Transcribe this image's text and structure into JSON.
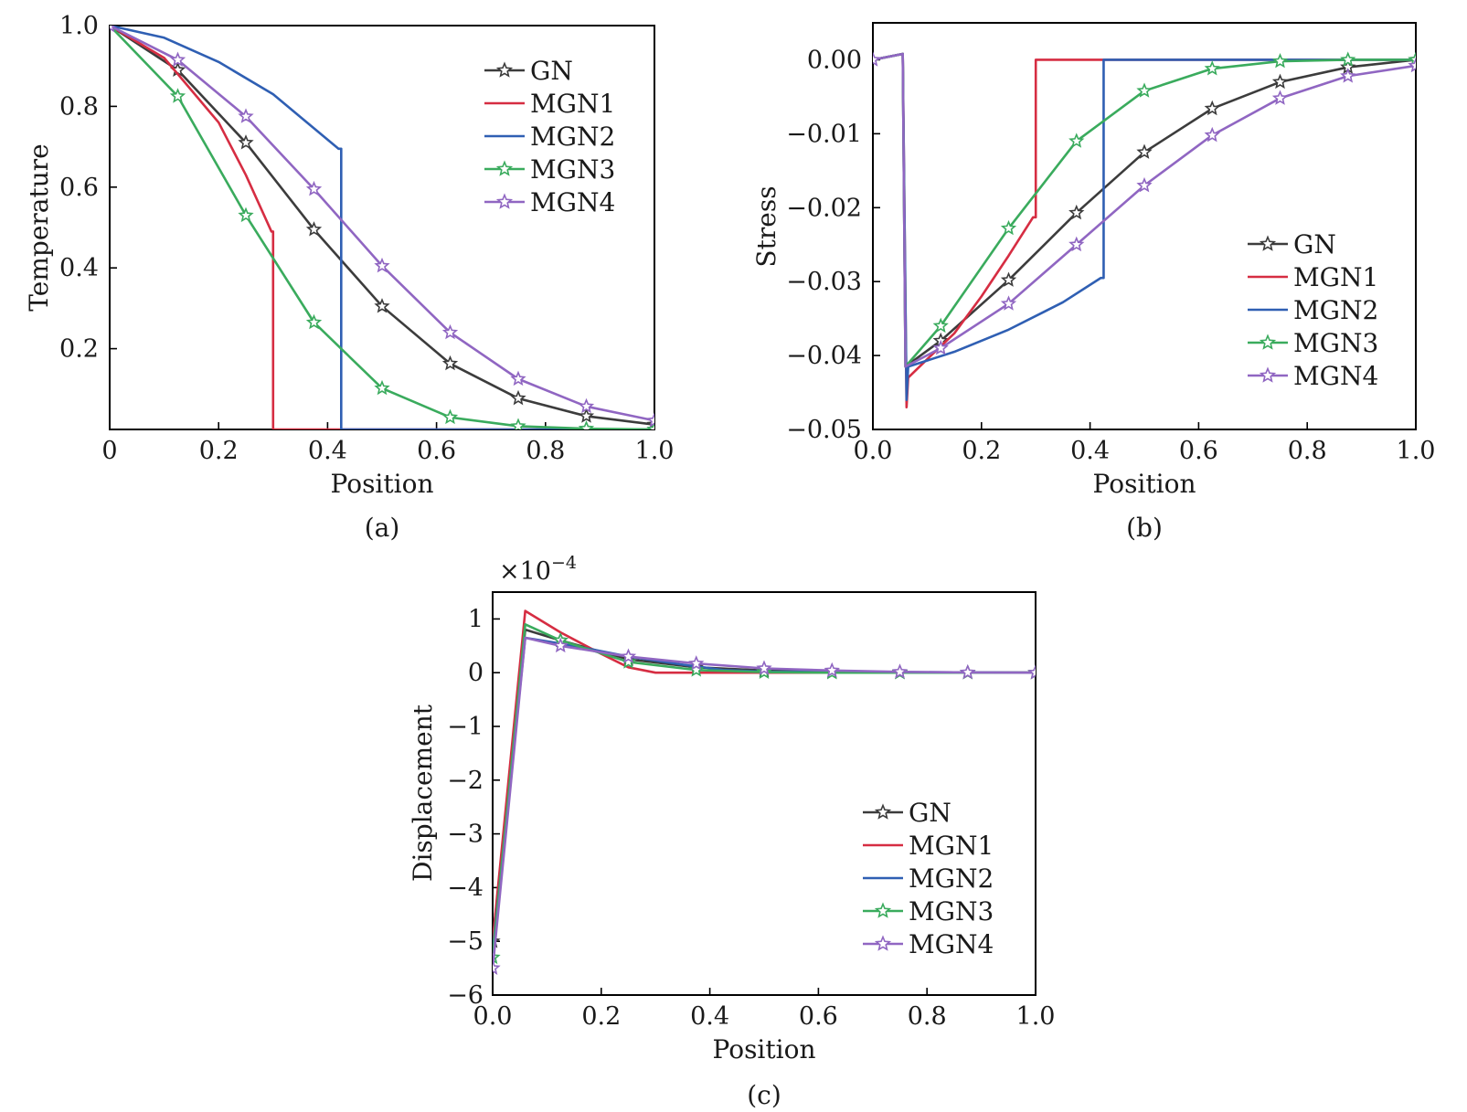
{
  "colors": {
    "GN": "#3c3c3c",
    "MGN1": "#d62d42",
    "MGN2": "#2f5fb3",
    "MGN3": "#3aab5d",
    "MGN4": "#9066c2"
  },
  "chart_data": [
    {
      "id": "a",
      "type": "line",
      "caption": "(a)",
      "xlabel": "Position",
      "ylabel": "Temperature",
      "xlim": [
        0,
        1
      ],
      "ylim": [
        0,
        1
      ],
      "xticks": [
        0,
        0.2,
        0.4,
        0.6,
        0.8,
        1.0
      ],
      "xtick_labels": [
        "0",
        "0.2",
        "0.4",
        "0.6",
        "0.8",
        "1.0"
      ],
      "yticks": [
        0.2,
        0.4,
        0.6,
        0.8,
        1.0
      ],
      "ytick_labels": [
        "0.2",
        "0.4",
        "0.6",
        "0.8",
        "1.0"
      ],
      "legend": {
        "position": "top-right",
        "entries": [
          "GN",
          "MGN1",
          "MGN2",
          "MGN3",
          "MGN4"
        ]
      },
      "series": [
        {
          "name": "GN",
          "marker": "star",
          "x": [
            0,
            0.125,
            0.25,
            0.375,
            0.5,
            0.625,
            0.75,
            0.875,
            1.0
          ],
          "y": [
            1.0,
            0.89,
            0.71,
            0.495,
            0.305,
            0.163,
            0.077,
            0.033,
            0.012
          ],
          "markers_x": [
            0.125,
            0.25,
            0.375,
            0.5,
            0.625,
            0.75,
            0.875,
            1.0
          ]
        },
        {
          "name": "MGN1",
          "marker": "none",
          "x": [
            0,
            0.1,
            0.2,
            0.25,
            0.297,
            0.3,
            0.3,
            1.0
          ],
          "y": [
            1.0,
            0.92,
            0.76,
            0.63,
            0.49,
            0.49,
            0,
            0
          ]
        },
        {
          "name": "MGN2",
          "marker": "none",
          "x": [
            0,
            0.1,
            0.2,
            0.3,
            0.42,
            0.425,
            0.425,
            1.0
          ],
          "y": [
            1.0,
            0.97,
            0.91,
            0.83,
            0.695,
            0.695,
            0,
            0
          ]
        },
        {
          "name": "MGN3",
          "marker": "star",
          "x": [
            0,
            0.125,
            0.25,
            0.375,
            0.5,
            0.625,
            0.75,
            0.875,
            1.0
          ],
          "y": [
            1.0,
            0.825,
            0.53,
            0.265,
            0.102,
            0.03,
            0.008,
            0.002,
            0.0
          ],
          "markers_x": [
            0.125,
            0.25,
            0.375,
            0.5,
            0.625,
            0.75,
            0.875,
            1.0
          ]
        },
        {
          "name": "MGN4",
          "marker": "star",
          "x": [
            0,
            0.125,
            0.25,
            0.375,
            0.5,
            0.625,
            0.75,
            0.875,
            1.0
          ],
          "y": [
            1.0,
            0.915,
            0.775,
            0.595,
            0.405,
            0.24,
            0.125,
            0.057,
            0.022
          ],
          "markers_x": [
            0,
            0.125,
            0.25,
            0.375,
            0.5,
            0.625,
            0.75,
            0.875,
            1.0
          ]
        }
      ]
    },
    {
      "id": "b",
      "type": "line",
      "caption": "(b)",
      "xlabel": "Position",
      "ylabel": "Stress",
      "xlim": [
        0,
        1
      ],
      "ylim": [
        -0.05,
        0.005
      ],
      "xticks": [
        0,
        0.2,
        0.4,
        0.6,
        0.8,
        1.0
      ],
      "xtick_labels": [
        "0.0",
        "0.2",
        "0.4",
        "0.6",
        "0.8",
        "1.0"
      ],
      "yticks": [
        -0.05,
        -0.04,
        -0.03,
        -0.02,
        -0.01,
        0.0
      ],
      "ytick_labels": [
        "−0.05",
        "−0.04",
        "−0.03",
        "−0.02",
        "−0.01",
        "0.00"
      ],
      "legend": {
        "position": "center-right",
        "entries": [
          "GN",
          "MGN1",
          "MGN2",
          "MGN3",
          "MGN4"
        ]
      },
      "series": [
        {
          "name": "GN",
          "marker": "star",
          "x": [
            0,
            0.055,
            0.06,
            0.125,
            0.25,
            0.375,
            0.5,
            0.625,
            0.75,
            0.875,
            1.0
          ],
          "y": [
            0,
            0.0008,
            -0.0415,
            -0.038,
            -0.0298,
            -0.0207,
            -0.0125,
            -0.0066,
            -0.003,
            -0.001,
            0.0
          ],
          "markers_x": [
            0.125,
            0.25,
            0.375,
            0.5,
            0.625,
            0.75,
            0.875,
            1.0
          ]
        },
        {
          "name": "MGN1",
          "marker": "none",
          "x": [
            0,
            0.055,
            0.062,
            0.065,
            0.1,
            0.15,
            0.2,
            0.25,
            0.295,
            0.3,
            0.3,
            1.0
          ],
          "y": [
            0,
            0.0008,
            -0.047,
            -0.043,
            -0.0405,
            -0.037,
            -0.032,
            -0.0265,
            -0.0213,
            -0.0213,
            0.0,
            0.0
          ]
        },
        {
          "name": "MGN2",
          "marker": "none",
          "x": [
            0,
            0.055,
            0.062,
            0.065,
            0.15,
            0.25,
            0.35,
            0.42,
            0.425,
            0.425,
            1.0
          ],
          "y": [
            0,
            0.0008,
            -0.046,
            -0.0415,
            -0.0395,
            -0.0365,
            -0.0328,
            -0.0295,
            -0.0295,
            0.0,
            0.0
          ]
        },
        {
          "name": "MGN3",
          "marker": "star",
          "x": [
            0,
            0.055,
            0.06,
            0.125,
            0.25,
            0.375,
            0.5,
            0.625,
            0.75,
            0.875,
            1.0
          ],
          "y": [
            0,
            0.0008,
            -0.0415,
            -0.036,
            -0.0228,
            -0.011,
            -0.0042,
            -0.0012,
            -0.0002,
            0.0,
            0.0
          ],
          "markers_x": [
            0.125,
            0.25,
            0.375,
            0.5,
            0.625,
            0.75,
            0.875,
            1.0
          ]
        },
        {
          "name": "MGN4",
          "marker": "star",
          "x": [
            0,
            0.055,
            0.06,
            0.125,
            0.25,
            0.375,
            0.5,
            0.625,
            0.75,
            0.875,
            1.0
          ],
          "y": [
            0,
            0.0008,
            -0.0415,
            -0.039,
            -0.033,
            -0.025,
            -0.017,
            -0.0102,
            -0.0052,
            -0.0022,
            -0.0008
          ],
          "markers_x": [
            0,
            0.125,
            0.25,
            0.375,
            0.5,
            0.625,
            0.75,
            0.875,
            1.0
          ]
        }
      ]
    },
    {
      "id": "c",
      "type": "line",
      "caption": "(c)",
      "xlabel": "Position",
      "ylabel": "Displacement",
      "scale_factor_label": "×10",
      "scale_exponent": "−4",
      "xlim": [
        0,
        1
      ],
      "ylim": [
        -6,
        1.5
      ],
      "xticks": [
        0,
        0.2,
        0.4,
        0.6,
        0.8,
        1.0
      ],
      "xtick_labels": [
        "0.0",
        "0.2",
        "0.4",
        "0.6",
        "0.8",
        "1.0"
      ],
      "yticks": [
        -6,
        -5,
        -4,
        -3,
        -2,
        -1,
        0,
        1
      ],
      "ytick_labels": [
        "−6",
        "−5",
        "−4",
        "−3",
        "−2",
        "−1",
        "0",
        "1"
      ],
      "legend": {
        "position": "lower-right",
        "entries": [
          "GN",
          "MGN1",
          "MGN2",
          "MGN3",
          "MGN4"
        ]
      },
      "series": [
        {
          "name": "GN",
          "marker": "star",
          "x": [
            0,
            0.06,
            0.125,
            0.25,
            0.375,
            0.5,
            0.625,
            0.75,
            0.875,
            1.0
          ],
          "y": [
            -5.0,
            0.8,
            0.6,
            0.25,
            0.1,
            0.04,
            0.015,
            0.005,
            0.0,
            0.0
          ],
          "markers_x": [
            0,
            0.125,
            0.25,
            0.375,
            0.5,
            0.625,
            0.75,
            0.875,
            1.0
          ]
        },
        {
          "name": "MGN1",
          "marker": "none",
          "x": [
            0,
            0.06,
            0.125,
            0.2,
            0.25,
            0.3,
            0.4,
            1.0
          ],
          "y": [
            -5.0,
            1.15,
            0.75,
            0.35,
            0.1,
            0.0,
            0.0,
            0.0
          ]
        },
        {
          "name": "MGN2",
          "marker": "none",
          "x": [
            0,
            0.06,
            0.15,
            0.25,
            0.35,
            0.425,
            0.5,
            1.0
          ],
          "y": [
            -5.2,
            0.65,
            0.5,
            0.3,
            0.15,
            0.05,
            0.02,
            0.0
          ]
        },
        {
          "name": "MGN3",
          "marker": "star",
          "x": [
            0,
            0.06,
            0.125,
            0.25,
            0.375,
            0.5,
            0.625,
            0.75,
            0.875,
            1.0
          ],
          "y": [
            -5.3,
            0.9,
            0.6,
            0.2,
            0.05,
            0.01,
            0.0,
            0.0,
            0.0,
            0.0
          ],
          "markers_x": [
            0,
            0.125,
            0.25,
            0.375,
            0.5,
            0.625,
            0.75,
            0.875,
            1.0
          ]
        },
        {
          "name": "MGN4",
          "marker": "star",
          "x": [
            0,
            0.06,
            0.125,
            0.25,
            0.375,
            0.5,
            0.625,
            0.75,
            0.875,
            1.0
          ],
          "y": [
            -5.5,
            0.65,
            0.5,
            0.3,
            0.17,
            0.08,
            0.04,
            0.015,
            0.005,
            0.0
          ],
          "markers_x": [
            0,
            0.125,
            0.25,
            0.375,
            0.5,
            0.625,
            0.75,
            0.875,
            1.0
          ]
        }
      ]
    }
  ]
}
